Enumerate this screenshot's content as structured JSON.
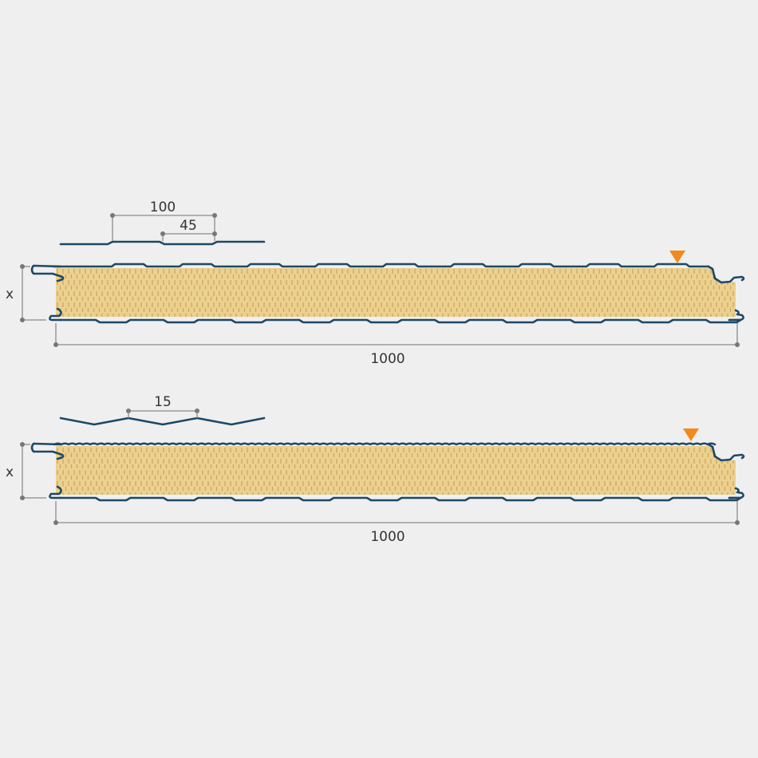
{
  "colors": {
    "background": "#efefef",
    "foam": "#ecd08e",
    "foam_hatch": "#c9a560",
    "skin": "#1d4866",
    "marker": "#f08a1e",
    "dimension": "#8a8a8a"
  },
  "panels": [
    {
      "profile": "trapezoidal ribbed",
      "labels": {
        "pitch": "100",
        "rib_width": "45",
        "thickness": "x",
        "width": "1000"
      }
    },
    {
      "profile": "micro-ribbed",
      "labels": {
        "pitch": "15",
        "thickness": "x",
        "width": "1000"
      }
    }
  ]
}
